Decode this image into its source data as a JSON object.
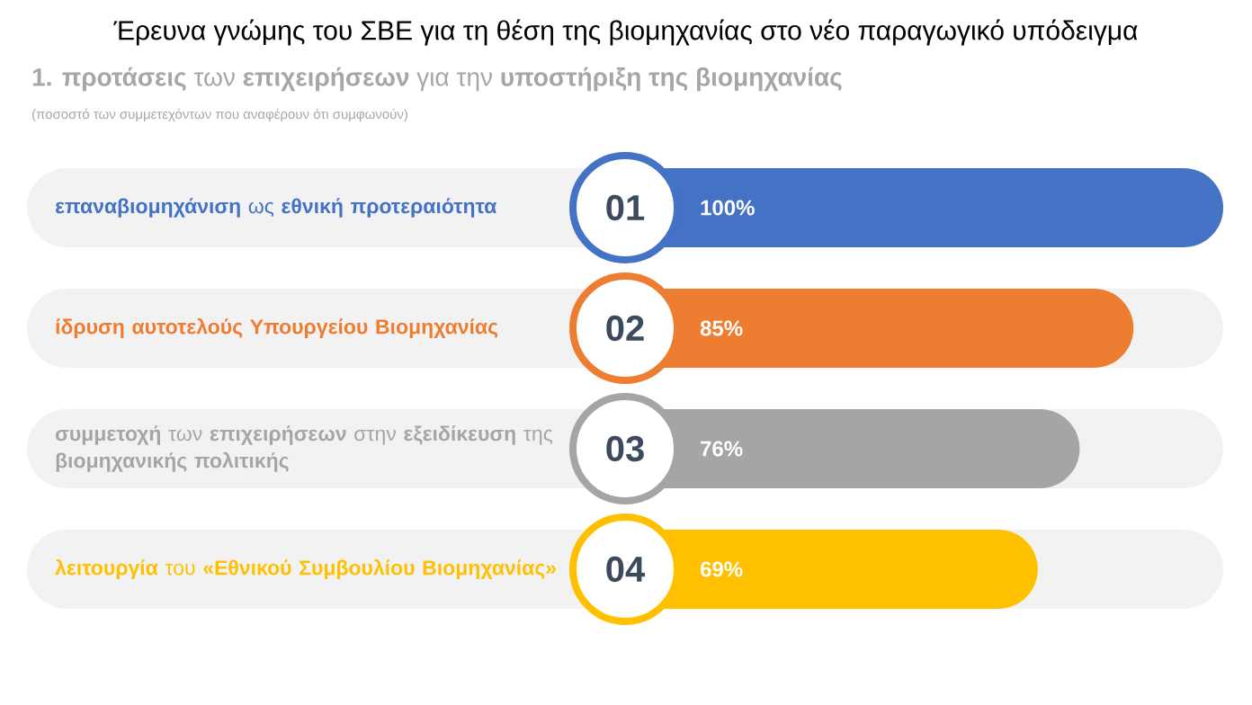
{
  "chart_data": {
    "type": "bar",
    "orientation": "horizontal",
    "title": "Έρευνα γνώμης του ΣΒΕ για τη θέση της βιομηχανίας στο νέο παραγωγικό υπόδειγμα",
    "subtitle": "**1. προτάσεις** των **επιχειρήσεων** για την **υποστήριξη της βιομηχανίας**",
    "annotations": [
      "(ποσοστό των συμμετεχόντων που αναφέρουν ότι συμφωνούν)",
      "01",
      "02",
      "03",
      "04"
    ],
    "categories": [
      "**επαναβιομηχάνιση** ως **εθνική προτεραιότητα**",
      "**ίδρυση αυτοτελούς Υπουργείου Βιομηχανίας**",
      "**συμμετοχή** των **επιχειρήσεων** στην **εξειδίκευση** της **βιομηχανικής πολιτικής**",
      "**λειτουργία** του **«Εθνικού Συμβουλίου Βιομηχανίας»**"
    ],
    "values": [
      100,
      85,
      76,
      69
    ],
    "colors": [
      "#4472c4",
      "#ed7d31",
      "#a5a5a5",
      "#ffc000"
    ],
    "value_labels": [
      "100%",
      "85%",
      "76%",
      "69%"
    ]
  }
}
